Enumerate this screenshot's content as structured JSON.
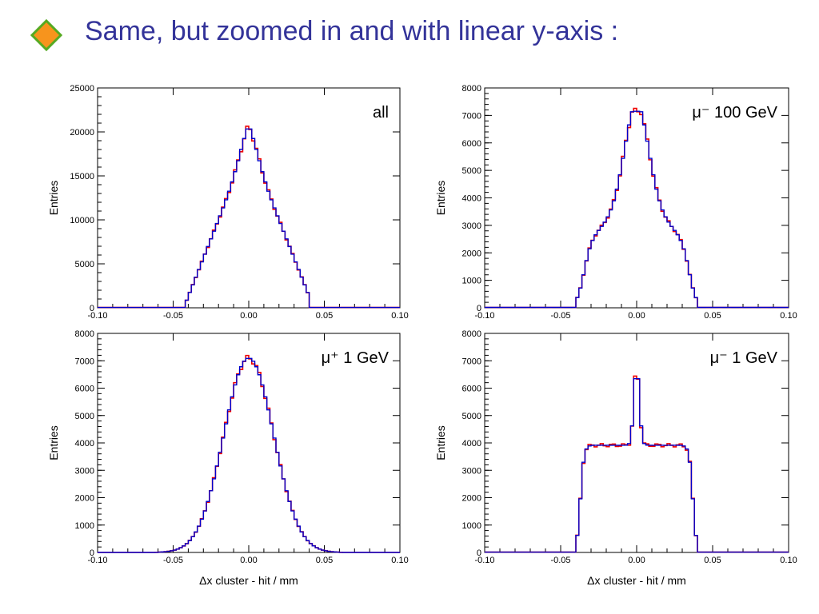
{
  "slide": {
    "title": "Same, but zoomed in and with linear y-axis :",
    "bullet_icon": "orange-diamond-icon",
    "bullet_color": "#f7941d",
    "bullet_border": "#55aa22",
    "title_color": "#333399"
  },
  "chart_data": [
    {
      "type": "line",
      "label": "all",
      "ylabel": "Entries",
      "xlabel": "",
      "xlim": [
        -0.1,
        0.1
      ],
      "ylim": [
        0,
        25000
      ],
      "x_ticks": [
        "-0.10",
        "-0.05",
        "0.00",
        "0.05",
        "0.10"
      ],
      "y_ticks": [
        "0",
        "5000",
        "10000",
        "15000",
        "20000",
        "25000"
      ],
      "peak": 20800,
      "series_colors": [
        "#ee0000",
        "#0000cc"
      ]
    },
    {
      "type": "line",
      "label": "μ⁻ 100 GeV",
      "ylabel": "Entries",
      "xlabel": "",
      "xlim": [
        -0.1,
        0.1
      ],
      "ylim": [
        0,
        8000
      ],
      "x_ticks": [
        "-0.10",
        "-0.05",
        "0.00",
        "0.05",
        "0.10"
      ],
      "y_ticks": [
        "0",
        "1000",
        "2000",
        "3000",
        "4000",
        "5000",
        "6000",
        "7000",
        "8000"
      ],
      "peak": 7150,
      "series_colors": [
        "#ee0000",
        "#0000cc"
      ]
    },
    {
      "type": "line",
      "label": "μ⁺ 1 GeV",
      "ylabel": "Entries",
      "xlabel": "Δx cluster - hit / mm",
      "xlim": [
        -0.1,
        0.1
      ],
      "ylim": [
        0,
        8000
      ],
      "x_ticks": [
        "-0.10",
        "-0.05",
        "0.00",
        "0.05",
        "0.10"
      ],
      "y_ticks": [
        "0",
        "1000",
        "2000",
        "3000",
        "4000",
        "5000",
        "6000",
        "7000",
        "8000"
      ],
      "peak": 7100,
      "series_colors": [
        "#ee0000",
        "#0000cc"
      ]
    },
    {
      "type": "line",
      "label": "μ⁻ 1 GeV",
      "ylabel": "Entries",
      "xlabel": "Δx cluster - hit / mm",
      "xlim": [
        -0.1,
        0.1
      ],
      "ylim": [
        0,
        8000
      ],
      "x_ticks": [
        "-0.10",
        "-0.05",
        "0.00",
        "0.05",
        "0.10"
      ],
      "y_ticks": [
        "0",
        "1000",
        "2000",
        "3000",
        "4000",
        "5000",
        "6000",
        "7000",
        "8000"
      ],
      "peak": 6750,
      "series_colors": [
        "#ee0000",
        "#0000cc"
      ]
    }
  ]
}
